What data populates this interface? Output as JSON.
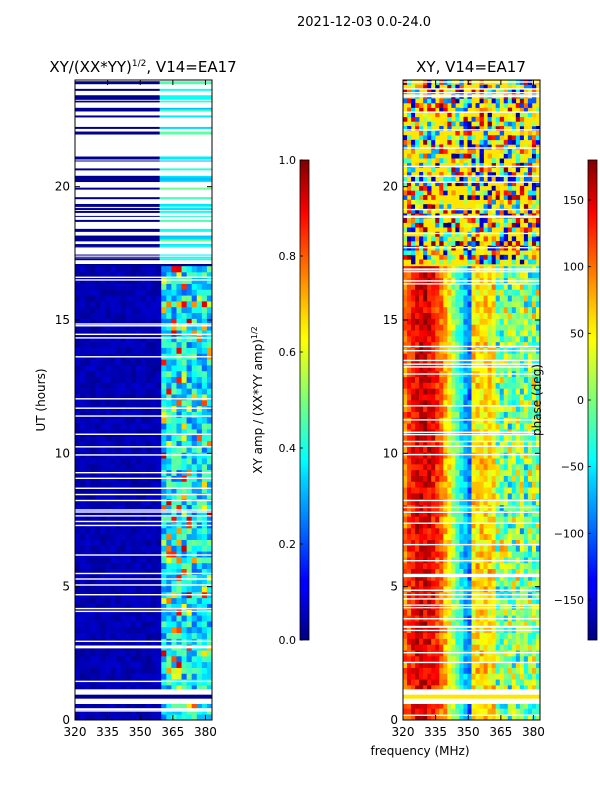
{
  "figure": {
    "suptitle": "2021-12-03 0.0-24.0"
  },
  "chart_data": [
    {
      "type": "heatmap",
      "title": "XY/(XX*YY)^1/2, V14=EA17",
      "title_main": "XY/(XX*YY)",
      "title_sup": "1/2",
      "title_tail": ", V14=EA17",
      "xlabel": "",
      "ylabel": "UT (hours)",
      "xlim": [
        320,
        383
      ],
      "ylim": [
        0,
        24
      ],
      "xticks": [
        320,
        335,
        350,
        365,
        380
      ],
      "yticks": [
        0,
        5,
        10,
        15,
        20
      ],
      "colormap": "jet",
      "bright_band_mhz": [
        359,
        382
      ],
      "flagged_hours": [
        [
          0.6,
          0.8
        ],
        [
          0.95,
          1.15
        ],
        [
          17.1,
          24
        ]
      ],
      "colorbar": {
        "label": "XY amp / (XX*YY amp)^1/2",
        "label_main": "XY amp / (XX*YY amp)",
        "label_sup": "1/2",
        "range": [
          0.0,
          1.0
        ],
        "ticks": [
          "0.0",
          "0.2",
          "0.4",
          "0.6",
          "0.8",
          "1.0"
        ],
        "tick_values": [
          0.0,
          0.2,
          0.4,
          0.6,
          0.8,
          1.0
        ]
      }
    },
    {
      "type": "heatmap",
      "title": "XY, V14=EA17",
      "xlabel": "frequency (MHz)",
      "ylabel": "",
      "xlim": [
        320,
        383
      ],
      "ylim": [
        0,
        24
      ],
      "xticks": [
        320,
        335,
        350,
        365,
        380
      ],
      "yticks": [
        0,
        5,
        10,
        15,
        20
      ],
      "colormap": "jet",
      "flagged_hours": [
        [
          0.6,
          0.8
        ],
        [
          0.95,
          1.15
        ],
        [
          17.1,
          24
        ]
      ],
      "colorbar": {
        "label": "phase (deg)",
        "range": [
          -180,
          180
        ],
        "ticks": [
          "−150",
          "−100",
          "−50",
          "0",
          "50",
          "100",
          "150"
        ],
        "tick_values": [
          -150,
          -100,
          -50,
          0,
          50,
          100,
          150
        ]
      }
    }
  ]
}
